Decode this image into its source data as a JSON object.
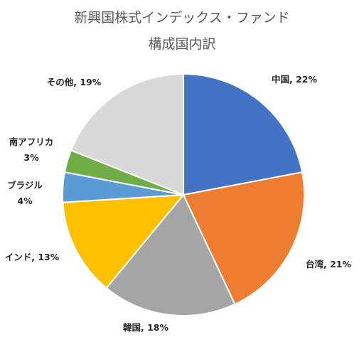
{
  "chart_data": {
    "type": "pie",
    "title": [
      "新興国株式インデックス・ファンド",
      "構成国内訳"
    ],
    "start_angle_deg": 0,
    "direction": "clockwise",
    "legend": "none",
    "slices": [
      {
        "label": "中国",
        "value": 22,
        "value_text": "22%",
        "color": "#4472C4"
      },
      {
        "label": "台湾",
        "value": 21,
        "value_text": "21%",
        "color": "#ED7D31"
      },
      {
        "label": "韓国",
        "value": 18,
        "value_text": "18%",
        "color": "#A5A5A5"
      },
      {
        "label": "インド",
        "value": 13,
        "value_text": "13%",
        "color": "#FFC000"
      },
      {
        "label": "ブラジル",
        "value": 4,
        "value_text": "4%",
        "color": "#5B9BD5"
      },
      {
        "label": "南アフリカ",
        "value": 3,
        "value_text": "3%",
        "color": "#70AD47"
      },
      {
        "label": "その他",
        "value": 19,
        "value_text": "19%",
        "color": "#D9D9D9"
      }
    ]
  }
}
